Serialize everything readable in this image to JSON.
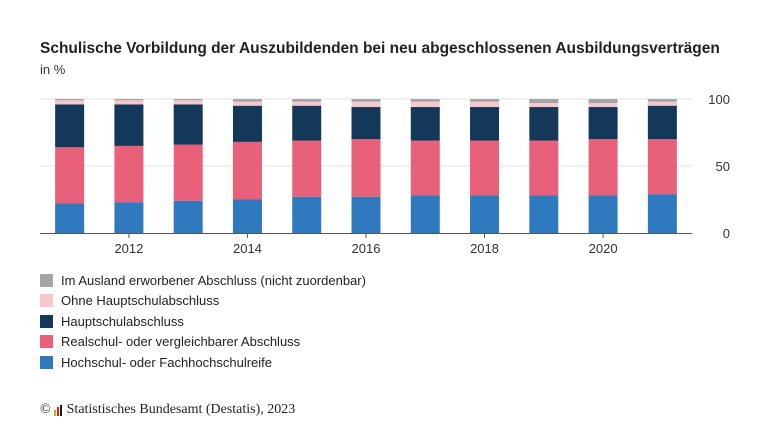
{
  "chart_data": {
    "type": "bar",
    "stacked": true,
    "title": "Schulische Vorbildung der Auszubildenden bei neu abgeschlossenen Ausbildungsverträgen",
    "subtitle": "in %",
    "x": [
      2011,
      2012,
      2013,
      2014,
      2015,
      2016,
      2017,
      2018,
      2019,
      2020,
      2021
    ],
    "x_tick_labels": [
      "2012",
      "2014",
      "2016",
      "2018",
      "2020"
    ],
    "y_tick_labels": [
      "0",
      "50",
      "100"
    ],
    "ylim": [
      0,
      100
    ],
    "y_axis_position": "right",
    "grid": true,
    "legend_position": "bottom-left",
    "series": [
      {
        "name": "Hochschul- oder Fachhochschulreife",
        "color": "#2f7abf",
        "values": [
          22,
          23,
          24,
          25,
          27,
          27,
          28,
          28,
          28,
          28,
          29
        ]
      },
      {
        "name": "Realschul- oder vergleichbarer Abschluss",
        "color": "#e8607a",
        "values": [
          42,
          42,
          42,
          43,
          42,
          43,
          41,
          41,
          41,
          42,
          41
        ]
      },
      {
        "name": "Hauptschulabschluss",
        "color": "#13385a",
        "values": [
          32,
          31,
          30,
          27,
          26,
          24,
          25,
          25,
          25,
          24,
          25
        ]
      },
      {
        "name": "Ohne Hauptschulabschluss",
        "color": "#f6c8cd",
        "values": [
          3,
          3,
          3,
          3,
          3,
          4,
          4,
          4,
          3,
          3,
          3
        ]
      },
      {
        "name": "Im Ausland erworbener Abschluss (nicht zuordenbar)",
        "color": "#a5a5a5",
        "values": [
          1,
          1,
          1,
          2,
          2,
          2,
          2,
          2,
          3,
          3,
          2
        ]
      }
    ]
  },
  "legend_items": [
    {
      "label": "Im Ausland erworbener Abschluss (nicht zuordenbar)",
      "color": "#a5a5a5"
    },
    {
      "label": "Ohne Hauptschulabschluss",
      "color": "#f6c8cd"
    },
    {
      "label": "Hauptschulabschluss",
      "color": "#13385a"
    },
    {
      "label": "Realschul- oder vergleichbarer Abschluss",
      "color": "#e8607a"
    },
    {
      "label": "Hochschul- oder Fachhochschulreife",
      "color": "#2f7abf"
    }
  ],
  "footer": {
    "copyright_symbol": "©",
    "source": "Statistisches Bundesamt (Destatis), 2023"
  }
}
